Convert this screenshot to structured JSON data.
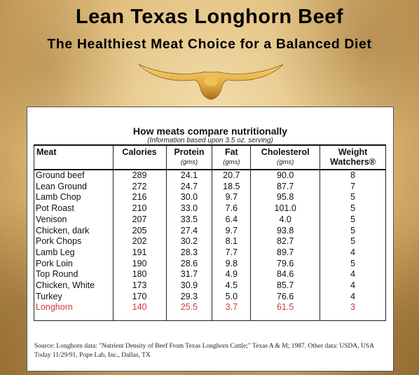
{
  "header": {
    "title": "Lean Texas Longhorn Beef",
    "subtitle": "The Healthiest Meat Choice for a Balanced Diet"
  },
  "logo": {
    "icon": "longhorn-horns-icon",
    "color": "#e8b64a"
  },
  "table": {
    "title": "How meats compare nutritionally",
    "note": "(Information based upon 3.5 oz. serving)",
    "columns": [
      {
        "label": "Meat",
        "unit": ""
      },
      {
        "label": "Calories",
        "unit": ""
      },
      {
        "label": "Protein",
        "unit": "(gms)"
      },
      {
        "label": "Fat",
        "unit": "(gms)"
      },
      {
        "label": "Cholesterol",
        "unit": "(gms)"
      },
      {
        "label": "Weight Watchers®",
        "unit": ""
      }
    ],
    "rows": [
      [
        "Ground beef",
        "289",
        "24.1",
        "20.7",
        "90.0",
        "8"
      ],
      [
        "Lean Ground",
        "272",
        "24.7",
        "18.5",
        "87.7",
        "7"
      ],
      [
        "Lamb Chop",
        "216",
        "30.0",
        "9.7",
        "95.8",
        "5"
      ],
      [
        "Pot Roast",
        "210",
        "33.0",
        "7.6",
        "101.0",
        "5"
      ],
      [
        "Venison",
        "207",
        "33.5",
        "6.4",
        "4.0",
        "5"
      ],
      [
        "Chicken, dark",
        "205",
        "27.4",
        "9.7",
        "93.8",
        "5"
      ],
      [
        "Pork Chops",
        "202",
        "30.2",
        "8.1",
        "82.7",
        "5"
      ],
      [
        "Lamb Leg",
        "191",
        "28.3",
        "7.7",
        "89.7",
        "4"
      ],
      [
        "Pork Loin",
        "190",
        "28.6",
        "9.8",
        "79.6",
        "5"
      ],
      [
        "Top Round",
        "180",
        "31.7",
        "4.9",
        "84.6",
        "4"
      ],
      [
        "Chicken, White",
        "173",
        "30.9",
        "4.5",
        "85.7",
        "4"
      ],
      [
        "Turkey",
        "170",
        "29.3",
        "5.0",
        "76.6",
        "4"
      ],
      [
        "Longhorn",
        "140",
        "25.5",
        "3.7",
        "61.5",
        "3"
      ]
    ],
    "highlight_row": 12,
    "highlight_color": "#d0373a"
  },
  "source": "Source:  Longhorn data:  \"Nutrient Density of Beef From Texas Longhorn Cattle;\"  Texas A & M;  1987.  Other data: USDA, USA Today 11/29/91, Pope Lab, Inc., Dallas, TX"
}
